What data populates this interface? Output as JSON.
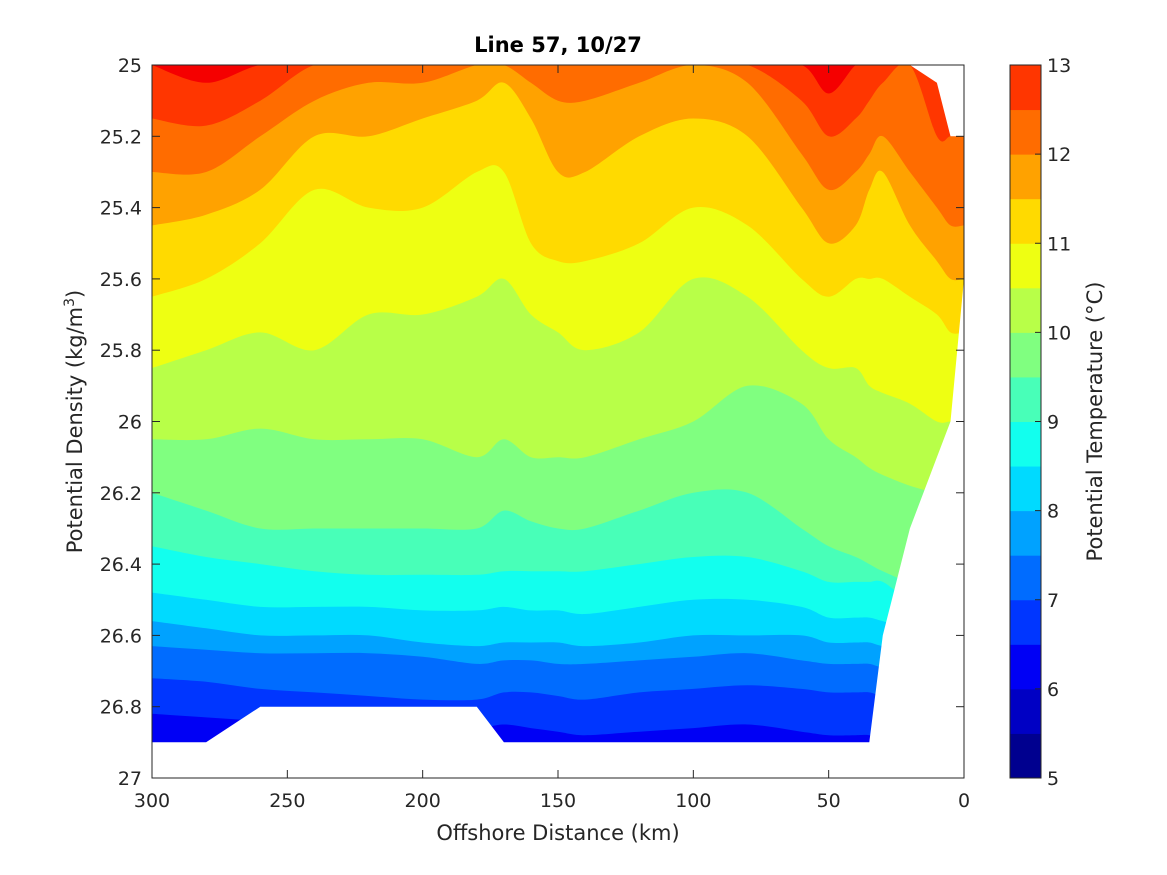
{
  "chart_data": {
    "type": "contour",
    "title": "Line 57, 10/27",
    "xlabel": "Offshore Distance (km)",
    "ylabel_main": "Potential Density (kg/m",
    "ylabel_sup": "3",
    "ylabel_close": ")",
    "colorbar_label": "Potential Temperature (°C)",
    "xlim": [
      300,
      0
    ],
    "ylim": [
      25,
      27
    ],
    "y_reversed": true,
    "x_ticks": [
      "300",
      "250",
      "200",
      "150",
      "100",
      "50",
      "0"
    ],
    "y_ticks": [
      "25",
      "25.2",
      "25.4",
      "25.6",
      "25.8",
      "26",
      "26.2",
      "26.4",
      "26.6",
      "26.8",
      "27"
    ],
    "colorbar_ticks": [
      "5",
      "6",
      "7",
      "8",
      "9",
      "10",
      "11",
      "12",
      "13"
    ],
    "colorbar_range": [
      5,
      13
    ],
    "colorbar_step": 0.5,
    "level_colors": [
      "#00008f",
      "#0000c4",
      "#0000f5",
      "#0036ff",
      "#006cff",
      "#00a2ff",
      "#00daff",
      "#12ffee",
      "#48ffb8",
      "#80ff80",
      "#b8ff48",
      "#eeff12",
      "#ffda00",
      "#ffa200",
      "#ff6c00",
      "#ff3600",
      "#f50000",
      "#c40000"
    ],
    "distance_km": [
      300,
      280,
      260,
      240,
      220,
      200,
      180,
      170,
      160,
      150,
      140,
      120,
      100,
      80,
      60,
      50,
      40,
      35,
      30,
      20,
      10,
      5,
      0
    ],
    "top_density": [
      25,
      25,
      25,
      25,
      25,
      25,
      25,
      25,
      25,
      25,
      25,
      25,
      25,
      25,
      25,
      25,
      25,
      25,
      25,
      25,
      25.05,
      25.2,
      25.2
    ],
    "bottom_density": [
      26.9,
      26.9,
      26.8,
      26.8,
      26.8,
      26.8,
      26.8,
      26.9,
      26.9,
      26.9,
      26.9,
      26.9,
      26.9,
      26.9,
      26.9,
      26.9,
      26.9,
      26.9,
      26.6,
      26.3,
      26.1,
      26,
      25.6
    ],
    "isotherms": [
      {
        "t": 12.5,
        "density": [
          25.0,
          25.05,
          25.0,
          25.0,
          25.0,
          25.0,
          25.0,
          25.0,
          25.0,
          25.0,
          25.0,
          25.0,
          25.0,
          25.0,
          25.0,
          25.08,
          25.0,
          25.0,
          25.0,
          25.0,
          25.0,
          25.0,
          25.0
        ]
      },
      {
        "t": 12,
        "density": [
          25.15,
          25.17,
          25.1,
          25.0,
          25.0,
          25.0,
          25.0,
          25.0,
          25.0,
          25.0,
          25.0,
          25.0,
          25.0,
          25.0,
          25.1,
          25.2,
          25.15,
          25.1,
          25.05,
          25.0,
          25.2,
          25.2,
          25.2
        ]
      },
      {
        "t": 11.5,
        "density": [
          25.3,
          25.3,
          25.2,
          25.1,
          25.05,
          25.05,
          25.0,
          25.0,
          25.05,
          25.1,
          25.1,
          25.05,
          25.0,
          25.05,
          25.25,
          25.35,
          25.3,
          25.25,
          25.2,
          25.3,
          25.4,
          25.45,
          25.45
        ]
      },
      {
        "t": 11,
        "density": [
          25.45,
          25.42,
          25.35,
          25.2,
          25.2,
          25.15,
          25.1,
          25.05,
          25.15,
          25.3,
          25.3,
          25.2,
          25.15,
          25.2,
          25.4,
          25.5,
          25.45,
          25.35,
          25.3,
          25.45,
          25.55,
          25.6,
          25.6
        ]
      },
      {
        "t": 10.5,
        "density": [
          25.65,
          25.6,
          25.5,
          25.35,
          25.4,
          25.4,
          25.3,
          25.3,
          25.5,
          25.55,
          25.55,
          25.5,
          25.4,
          25.45,
          25.6,
          25.65,
          25.6,
          25.6,
          25.6,
          25.65,
          25.7,
          25.75,
          25.75
        ]
      },
      {
        "t": 10,
        "density": [
          25.85,
          25.8,
          25.75,
          25.8,
          25.7,
          25.7,
          25.65,
          25.6,
          25.7,
          25.75,
          25.8,
          25.75,
          25.6,
          25.65,
          25.8,
          25.85,
          25.85,
          25.9,
          25.92,
          25.95,
          26.0,
          26.0,
          26.0
        ]
      },
      {
        "t": 9.5,
        "density": [
          26.05,
          26.05,
          26.02,
          26.05,
          26.05,
          26.05,
          26.1,
          26.05,
          26.1,
          26.1,
          26.1,
          26.05,
          26.0,
          25.9,
          25.95,
          26.05,
          26.1,
          26.13,
          26.15,
          26.18,
          26.2,
          26.2,
          26.2
        ]
      },
      {
        "t": 9,
        "density": [
          26.2,
          26.25,
          26.3,
          26.3,
          26.3,
          26.3,
          26.3,
          26.25,
          26.28,
          26.3,
          26.3,
          26.25,
          26.2,
          26.2,
          26.3,
          26.35,
          26.38,
          26.4,
          26.42,
          26.45,
          26.45,
          26.45,
          26.45
        ]
      },
      {
        "t": 8.5,
        "density": [
          26.35,
          26.38,
          26.4,
          26.42,
          26.43,
          26.43,
          26.43,
          26.42,
          26.42,
          26.42,
          26.42,
          26.4,
          26.38,
          26.38,
          26.42,
          26.45,
          26.45,
          26.45,
          26.45,
          26.5,
          26.5,
          26.5,
          26.5
        ]
      },
      {
        "t": 8,
        "density": [
          26.48,
          26.5,
          26.52,
          26.52,
          26.52,
          26.53,
          26.53,
          26.52,
          26.53,
          26.53,
          26.54,
          26.52,
          26.5,
          26.5,
          26.52,
          26.55,
          26.55,
          26.55,
          26.56,
          26.58,
          26.58,
          26.58,
          26.58
        ]
      },
      {
        "t": 7.5,
        "density": [
          26.56,
          26.58,
          26.6,
          26.6,
          26.6,
          26.62,
          26.63,
          26.62,
          26.62,
          26.62,
          26.63,
          26.62,
          26.6,
          26.6,
          26.6,
          26.62,
          26.62,
          26.62,
          26.63,
          26.64,
          26.64,
          26.64,
          26.64
        ]
      },
      {
        "t": 7,
        "density": [
          26.63,
          26.64,
          26.65,
          26.65,
          26.65,
          26.66,
          26.68,
          26.67,
          26.67,
          26.68,
          26.68,
          26.67,
          26.66,
          26.65,
          26.67,
          26.68,
          26.68,
          26.68,
          26.69,
          26.7,
          26.7,
          26.7,
          26.7
        ]
      },
      {
        "t": 6.5,
        "density": [
          26.72,
          26.73,
          26.75,
          26.76,
          26.77,
          26.78,
          26.78,
          26.76,
          26.76,
          26.77,
          26.78,
          26.76,
          26.75,
          26.74,
          26.75,
          26.76,
          26.76,
          26.76,
          26.77,
          26.78,
          26.78,
          26.78,
          26.78
        ]
      },
      {
        "t": 6,
        "density": [
          26.82,
          26.83,
          26.84,
          26.85,
          26.86,
          26.86,
          26.86,
          26.85,
          26.86,
          26.87,
          26.88,
          26.87,
          26.86,
          26.85,
          26.87,
          26.88,
          26.88,
          26.88,
          26.89,
          26.9,
          26.9,
          26.9,
          26.9
        ]
      }
    ]
  }
}
